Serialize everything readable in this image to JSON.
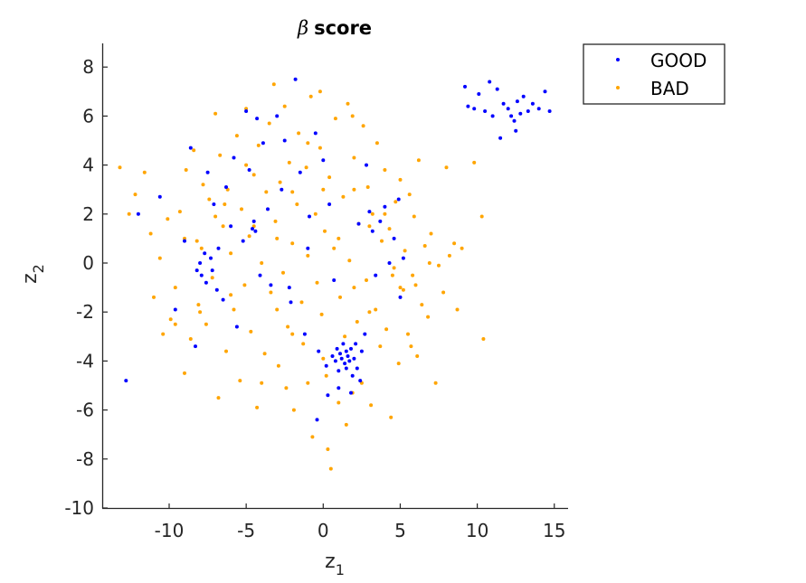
{
  "chart_data": {
    "type": "scatter",
    "title_symbol": "β",
    "title_text": "score",
    "xlabel_main": "z",
    "xlabel_sub": "1",
    "ylabel_main": "z",
    "ylabel_sub": "2",
    "xlim": [
      -14,
      16
    ],
    "ylim": [
      -10,
      9
    ],
    "xticks": [
      -10,
      -5,
      0,
      5,
      10,
      15
    ],
    "yticks": [
      -10,
      -8,
      -6,
      -4,
      -2,
      0,
      2,
      4,
      6,
      8
    ],
    "grid": false,
    "legend_position": "top-right, outside plot area",
    "series": [
      {
        "name": "BAD",
        "color": "#FFA500",
        "points": [
          [
            -13.2,
            3.9
          ],
          [
            -12.6,
            2.0
          ],
          [
            -12.2,
            2.8
          ],
          [
            -11.6,
            3.7
          ],
          [
            -11.2,
            1.2
          ],
          [
            -11.0,
            -1.4
          ],
          [
            -10.6,
            0.2
          ],
          [
            -10.4,
            -2.9
          ],
          [
            -10.1,
            1.8
          ],
          [
            -9.9,
            -2.3
          ],
          [
            -9.6,
            -1.0
          ],
          [
            -9.3,
            2.1
          ],
          [
            -9.0,
            -4.5
          ],
          [
            -8.9,
            3.8
          ],
          [
            -8.6,
            -3.1
          ],
          [
            -8.4,
            4.6
          ],
          [
            -8.2,
            0.9
          ],
          [
            -8.1,
            -1.7
          ],
          [
            -7.8,
            3.2
          ],
          [
            -7.6,
            -2.5
          ],
          [
            -7.4,
            2.6
          ],
          [
            -7.2,
            -0.6
          ],
          [
            -7.0,
            6.1
          ],
          [
            -6.8,
            -5.5
          ],
          [
            -6.7,
            4.4
          ],
          [
            -6.5,
            1.5
          ],
          [
            -6.3,
            -3.6
          ],
          [
            -6.2,
            3.0
          ],
          [
            -6.0,
            0.4
          ],
          [
            -5.8,
            -1.9
          ],
          [
            -5.6,
            5.2
          ],
          [
            -5.4,
            -4.8
          ],
          [
            -5.3,
            2.2
          ],
          [
            -5.1,
            -0.9
          ],
          [
            -5.0,
            6.3
          ],
          [
            -4.8,
            1.1
          ],
          [
            -4.7,
            -2.8
          ],
          [
            -4.5,
            3.6
          ],
          [
            -4.3,
            -5.9
          ],
          [
            -4.2,
            4.8
          ],
          [
            -4.0,
            0.0
          ],
          [
            -3.8,
            -3.7
          ],
          [
            -3.7,
            2.9
          ],
          [
            -3.5,
            5.7
          ],
          [
            -3.4,
            -1.2
          ],
          [
            -3.2,
            7.3
          ],
          [
            -3.1,
            1.7
          ],
          [
            -2.9,
            -4.2
          ],
          [
            -2.8,
            3.3
          ],
          [
            -2.6,
            -0.4
          ],
          [
            -2.5,
            6.4
          ],
          [
            -2.3,
            -2.6
          ],
          [
            -2.2,
            4.1
          ],
          [
            -2.0,
            0.8
          ],
          [
            -1.9,
            -6.0
          ],
          [
            -1.7,
            2.4
          ],
          [
            -1.6,
            5.3
          ],
          [
            -1.4,
            -1.6
          ],
          [
            -1.3,
            -3.3
          ],
          [
            -1.1,
            3.9
          ],
          [
            -1.0,
            0.3
          ],
          [
            -0.8,
            6.8
          ],
          [
            -0.7,
            -7.1
          ],
          [
            -0.5,
            2.0
          ],
          [
            -0.4,
            -0.8
          ],
          [
            -0.2,
            4.7
          ],
          [
            -0.1,
            -2.1
          ],
          [
            0.1,
            1.3
          ],
          [
            0.2,
            -4.6
          ],
          [
            0.4,
            3.5
          ],
          [
            0.5,
            -8.4
          ],
          [
            0.7,
            0.6
          ],
          [
            0.8,
            5.9
          ],
          [
            1.0,
            -5.7
          ],
          [
            1.1,
            -1.4
          ],
          [
            1.3,
            2.7
          ],
          [
            1.4,
            -3.0
          ],
          [
            1.6,
            6.5
          ],
          [
            1.7,
            0.1
          ],
          [
            1.9,
            -5.3
          ],
          [
            2.0,
            4.3
          ],
          [
            2.2,
            -2.4
          ],
          [
            2.3,
            1.6
          ],
          [
            2.5,
            -4.9
          ],
          [
            2.6,
            5.6
          ],
          [
            2.8,
            -0.7
          ],
          [
            2.9,
            3.1
          ],
          [
            3.1,
            -5.8
          ],
          [
            3.2,
            2.0
          ],
          [
            3.4,
            -1.9
          ],
          [
            3.5,
            4.9
          ],
          [
            3.7,
            -3.4
          ],
          [
            3.8,
            0.9
          ],
          [
            4.0,
            3.8
          ],
          [
            4.1,
            -2.7
          ],
          [
            4.3,
            1.4
          ],
          [
            4.4,
            -6.3
          ],
          [
            4.6,
            -0.2
          ],
          [
            4.7,
            2.5
          ],
          [
            4.9,
            -4.1
          ],
          [
            5.0,
            3.4
          ],
          [
            5.2,
            -1.1
          ],
          [
            5.3,
            0.5
          ],
          [
            5.5,
            -2.9
          ],
          [
            5.6,
            2.8
          ],
          [
            5.8,
            -0.5
          ],
          [
            5.9,
            1.9
          ],
          [
            6.1,
            -3.8
          ],
          [
            6.2,
            4.2
          ],
          [
            6.4,
            -1.7
          ],
          [
            6.6,
            0.7
          ],
          [
            6.8,
            -2.2
          ],
          [
            7.0,
            1.2
          ],
          [
            7.3,
            -4.9
          ],
          [
            7.5,
            -0.1
          ],
          [
            7.8,
            -1.2
          ],
          [
            8.0,
            3.9
          ],
          [
            8.2,
            0.3
          ],
          [
            8.5,
            0.8
          ],
          [
            8.7,
            -1.9
          ],
          [
            9.0,
            0.6
          ],
          [
            9.8,
            4.1
          ],
          [
            10.3,
            1.9
          ],
          [
            10.4,
            -3.1
          ],
          [
            -9.0,
            1.0
          ],
          [
            -8.0,
            -2.0
          ],
          [
            -7.0,
            1.9
          ],
          [
            -6.0,
            -1.3
          ],
          [
            -5.0,
            4.0
          ],
          [
            -4.0,
            -4.9
          ],
          [
            -3.0,
            1.0
          ],
          [
            -2.0,
            -2.9
          ],
          [
            -1.0,
            4.9
          ],
          [
            0.0,
            -3.9
          ],
          [
            0.0,
            3.0
          ],
          [
            1.0,
            1.0
          ],
          [
            2.0,
            3.0
          ],
          [
            3.0,
            -2.0
          ],
          [
            4.0,
            2.0
          ],
          [
            5.0,
            -1.0
          ],
          [
            6.0,
            -0.9
          ],
          [
            -3.0,
            -1.9
          ],
          [
            -2.0,
            2.9
          ],
          [
            -1.0,
            -4.9
          ],
          [
            2.0,
            -1.0
          ],
          [
            3.0,
            1.5
          ],
          [
            4.5,
            -0.5
          ],
          [
            -4.5,
            1.5
          ],
          [
            1.5,
            -6.6
          ],
          [
            0.3,
            -7.6
          ],
          [
            -2.4,
            -5.1
          ],
          [
            -6.4,
            2.4
          ],
          [
            -7.9,
            0.6
          ],
          [
            5.7,
            -3.4
          ],
          [
            6.9,
            0.0
          ],
          [
            -9.6,
            -2.5
          ],
          [
            -0.2,
            7.0
          ],
          [
            1.9,
            6.0
          ]
        ]
      },
      {
        "name": "GOOD",
        "color": "#0000FF",
        "points": [
          [
            -12.8,
            -4.8
          ],
          [
            -12.0,
            2.0
          ],
          [
            -10.6,
            2.7
          ],
          [
            -9.6,
            -1.9
          ],
          [
            -9.0,
            0.9
          ],
          [
            -8.6,
            4.7
          ],
          [
            -8.3,
            -3.4
          ],
          [
            -8.2,
            -0.3
          ],
          [
            -8.0,
            0.0
          ],
          [
            -7.9,
            -0.5
          ],
          [
            -7.7,
            0.4
          ],
          [
            -7.6,
            -0.8
          ],
          [
            -7.5,
            3.7
          ],
          [
            -7.3,
            0.2
          ],
          [
            -7.2,
            -0.3
          ],
          [
            -7.1,
            2.4
          ],
          [
            -6.9,
            -1.1
          ],
          [
            -6.8,
            0.6
          ],
          [
            -6.5,
            -1.5
          ],
          [
            -6.3,
            3.1
          ],
          [
            -6.0,
            1.5
          ],
          [
            -5.8,
            4.3
          ],
          [
            -5.6,
            -2.6
          ],
          [
            -5.2,
            0.9
          ],
          [
            -5.0,
            6.2
          ],
          [
            -4.8,
            3.8
          ],
          [
            -4.6,
            1.4
          ],
          [
            -4.5,
            1.7
          ],
          [
            -4.4,
            1.3
          ],
          [
            -4.3,
            5.9
          ],
          [
            -4.1,
            -0.5
          ],
          [
            -3.9,
            4.9
          ],
          [
            -3.6,
            2.2
          ],
          [
            -3.4,
            -0.9
          ],
          [
            -3.0,
            6.0
          ],
          [
            -2.7,
            3.0
          ],
          [
            -2.5,
            5.0
          ],
          [
            -2.1,
            -1.6
          ],
          [
            -1.8,
            7.5
          ],
          [
            -1.5,
            3.7
          ],
          [
            -1.2,
            -2.9
          ],
          [
            -0.9,
            1.9
          ],
          [
            -0.5,
            5.3
          ],
          [
            -0.3,
            -3.6
          ],
          [
            0.0,
            4.2
          ],
          [
            0.2,
            -4.2
          ],
          [
            0.4,
            2.4
          ],
          [
            0.6,
            -3.8
          ],
          [
            0.8,
            -4.0
          ],
          [
            0.9,
            -3.5
          ],
          [
            1.0,
            -4.4
          ],
          [
            1.1,
            -3.7
          ],
          [
            1.2,
            -3.9
          ],
          [
            1.3,
            -3.3
          ],
          [
            1.4,
            -4.1
          ],
          [
            1.5,
            -3.6
          ],
          [
            1.5,
            -4.3
          ],
          [
            1.6,
            -3.8
          ],
          [
            1.7,
            -4.0
          ],
          [
            1.8,
            -3.5
          ],
          [
            1.9,
            -4.6
          ],
          [
            2.0,
            -3.9
          ],
          [
            2.1,
            -3.3
          ],
          [
            2.2,
            -4.3
          ],
          [
            2.4,
            -4.8
          ],
          [
            2.5,
            -3.6
          ],
          [
            2.7,
            -2.9
          ],
          [
            1.0,
            -5.1
          ],
          [
            1.8,
            -5.3
          ],
          [
            0.3,
            -5.4
          ],
          [
            -0.4,
            -6.4
          ],
          [
            2.8,
            4.0
          ],
          [
            3.0,
            2.1
          ],
          [
            3.2,
            1.3
          ],
          [
            3.4,
            -0.5
          ],
          [
            3.7,
            1.7
          ],
          [
            4.0,
            2.3
          ],
          [
            4.3,
            0.0
          ],
          [
            4.6,
            1.0
          ],
          [
            4.9,
            2.6
          ],
          [
            5.0,
            -1.4
          ],
          [
            5.2,
            0.2
          ],
          [
            -1.0,
            0.6
          ],
          [
            -2.2,
            -1.0
          ],
          [
            0.7,
            -0.7
          ],
          [
            2.3,
            1.6
          ],
          [
            9.2,
            7.2
          ],
          [
            9.4,
            6.4
          ],
          [
            9.8,
            6.3
          ],
          [
            10.1,
            6.9
          ],
          [
            10.5,
            6.2
          ],
          [
            10.8,
            7.4
          ],
          [
            11.0,
            6.0
          ],
          [
            11.3,
            7.1
          ],
          [
            11.5,
            5.1
          ],
          [
            11.7,
            6.5
          ],
          [
            12.0,
            6.3
          ],
          [
            12.2,
            6.0
          ],
          [
            12.4,
            5.8
          ],
          [
            12.5,
            5.4
          ],
          [
            12.6,
            6.6
          ],
          [
            12.8,
            6.1
          ],
          [
            13.0,
            6.8
          ],
          [
            13.3,
            6.2
          ],
          [
            13.6,
            6.5
          ],
          [
            14.0,
            6.3
          ],
          [
            14.4,
            7.0
          ],
          [
            14.7,
            6.2
          ]
        ]
      }
    ]
  }
}
